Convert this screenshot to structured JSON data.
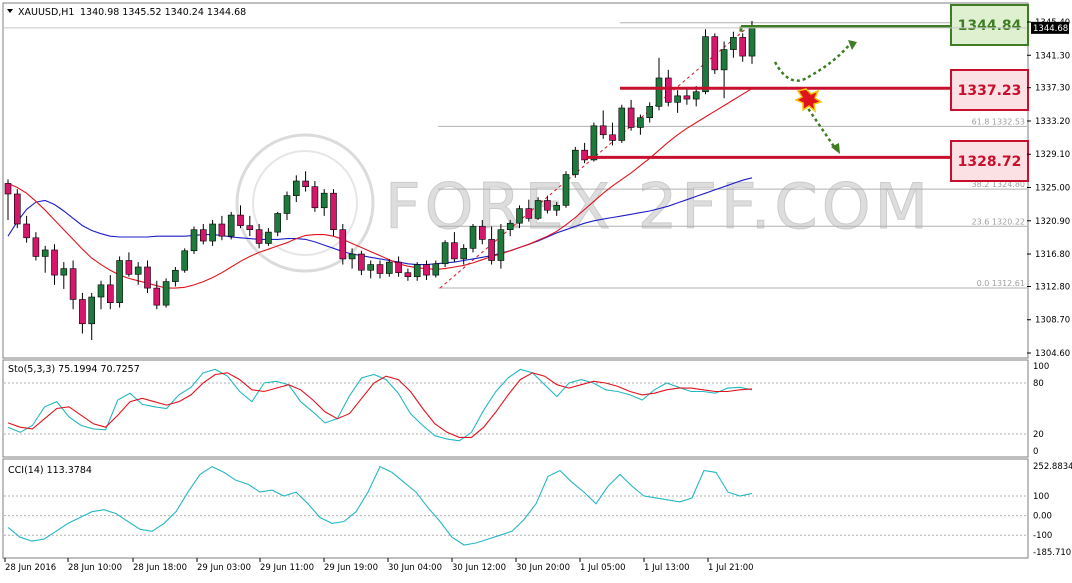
{
  "header": {
    "symbol": "XAUUSD,H1",
    "ohlc": "1340.98 1345.52 1340.24 1344.68"
  },
  "watermark": "FOREX 2FF.COM",
  "price_axis": {
    "ticks": [
      "1345.40",
      "1341.30",
      "1337.30",
      "1333.20",
      "1329.10",
      "1325.00",
      "1320.90",
      "1316.80",
      "1312.80",
      "1308.70",
      "1304.60"
    ],
    "current_price": "1344.68"
  },
  "time_axis": {
    "ticks": [
      "28 Jun 2016",
      "28 Jun 10:00",
      "28 Jun 18:00",
      "29 Jun 03:00",
      "29 Jun 11:00",
      "29 Jun 19:00",
      "30 Jun 04:00",
      "30 Jun 12:00",
      "30 Jun 20:00",
      "1 Jul 05:00",
      "1 Jul 13:00",
      "1 Jul 21:00"
    ]
  },
  "fib_levels": [
    {
      "label": "61.8  1332.53",
      "value": 1332.53
    },
    {
      "label": "38.2  1324.80",
      "value": 1324.8
    },
    {
      "label": "23.6  1320.22",
      "value": 1320.22
    },
    {
      "label": "0.0  1312.61",
      "value": 1312.61
    }
  ],
  "level_boxes": [
    {
      "label": "1344.84",
      "value": 1344.84,
      "kind": "resistance",
      "fill": "#dff0d0",
      "border": "#3e7d22",
      "line_color": "#3e7d22",
      "text_color": "#3e7d22"
    },
    {
      "label": "1337.23",
      "value": 1337.23,
      "kind": "pivot",
      "fill": "#fbe1e3",
      "border": "#c8102e",
      "line_color": "#c8102e",
      "text_color": "#c8102e"
    },
    {
      "label": "1328.72",
      "value": 1328.72,
      "kind": "support",
      "fill": "#fbe1e3",
      "border": "#c8102e",
      "line_color": "#c8102e",
      "text_color": "#c8102e"
    }
  ],
  "stoch": {
    "label": "Sto(5,3,3) 75.1994 70.7257",
    "ticks": [
      "100",
      "80",
      "20",
      "0"
    ],
    "main_color": "#26b7c4",
    "signal_color": "#e0141e",
    "main": [
      28,
      22,
      30,
      52,
      58,
      40,
      30,
      26,
      25,
      60,
      68,
      55,
      52,
      50,
      66,
      75,
      92,
      96,
      88,
      70,
      58,
      80,
      82,
      78,
      58,
      46,
      33,
      38,
      65,
      86,
      90,
      84,
      68,
      44,
      30,
      18,
      14,
      12,
      22,
      48,
      70,
      86,
      96,
      92,
      78,
      64,
      80,
      84,
      80,
      72,
      70,
      66,
      60,
      72,
      80,
      75,
      70,
      70,
      68,
      74,
      75,
      72
    ],
    "signal": [
      33,
      28,
      26,
      38,
      50,
      52,
      42,
      32,
      28,
      42,
      58,
      62,
      58,
      54,
      58,
      66,
      80,
      90,
      92,
      84,
      72,
      70,
      74,
      78,
      72,
      60,
      46,
      38,
      44,
      62,
      80,
      88,
      84,
      70,
      50,
      32,
      22,
      16,
      16,
      28,
      46,
      66,
      84,
      92,
      88,
      78,
      74,
      78,
      82,
      80,
      76,
      70,
      66,
      68,
      72,
      74,
      74,
      72,
      70,
      70,
      72,
      73
    ]
  },
  "cci": {
    "label": "CCI(14) 113.3784",
    "ticks": [
      "252.8834",
      "100",
      "0.00",
      "-100",
      "-185.710"
    ],
    "line_color": "#26b7c4",
    "values": [
      -60,
      -110,
      -130,
      -120,
      -80,
      -40,
      -10,
      20,
      30,
      10,
      -30,
      -70,
      -80,
      -40,
      20,
      120,
      210,
      250,
      220,
      180,
      160,
      120,
      130,
      100,
      120,
      60,
      -10,
      -40,
      -30,
      20,
      120,
      250,
      220,
      170,
      120,
      40,
      -30,
      -110,
      -150,
      -140,
      -120,
      -100,
      -80,
      -20,
      60,
      200,
      230,
      170,
      120,
      60,
      150,
      210,
      150,
      100,
      90,
      80,
      70,
      90,
      230,
      220,
      120,
      100,
      113
    ]
  },
  "chart_data": {
    "type": "candlestick",
    "symbol": "XAUUSD",
    "timeframe": "H1",
    "ylim": [
      1304.6,
      1345.4
    ],
    "candles": [
      [
        1325.5,
        1326.0,
        1321.0,
        1324.2
      ],
      [
        1324.2,
        1324.8,
        1320.0,
        1320.5
      ],
      [
        1320.5,
        1321.5,
        1318.2,
        1318.8
      ],
      [
        1318.8,
        1319.5,
        1316.0,
        1316.5
      ],
      [
        1316.5,
        1317.8,
        1314.5,
        1317.3
      ],
      [
        1317.3,
        1318.0,
        1313.0,
        1314.2
      ],
      [
        1314.2,
        1315.8,
        1312.5,
        1315.0
      ],
      [
        1315.0,
        1316.0,
        1310.0,
        1311.2
      ],
      [
        1311.2,
        1312.0,
        1307.0,
        1308.2
      ],
      [
        1308.2,
        1312.0,
        1306.2,
        1311.5
      ],
      [
        1311.5,
        1313.5,
        1310.0,
        1313.0
      ],
      [
        1313.0,
        1314.2,
        1310.0,
        1310.8
      ],
      [
        1310.8,
        1316.5,
        1310.2,
        1316.0
      ],
      [
        1316.0,
        1317.0,
        1314.0,
        1314.3
      ],
      [
        1314.3,
        1315.8,
        1313.0,
        1315.2
      ],
      [
        1315.2,
        1316.0,
        1312.0,
        1312.6
      ],
      [
        1312.6,
        1313.5,
        1310.0,
        1310.5
      ],
      [
        1310.5,
        1313.8,
        1310.2,
        1313.4
      ],
      [
        1313.4,
        1315.2,
        1312.8,
        1314.8
      ],
      [
        1314.8,
        1317.5,
        1314.5,
        1317.2
      ],
      [
        1317.2,
        1320.2,
        1316.8,
        1319.8
      ],
      [
        1319.8,
        1320.5,
        1318.0,
        1318.4
      ],
      [
        1318.4,
        1321.0,
        1317.8,
        1320.5
      ],
      [
        1320.5,
        1321.5,
        1318.5,
        1319.0
      ],
      [
        1319.0,
        1322.0,
        1318.6,
        1321.6
      ],
      [
        1321.6,
        1322.8,
        1320.0,
        1320.3
      ],
      [
        1320.3,
        1321.5,
        1319.0,
        1319.8
      ],
      [
        1319.8,
        1320.5,
        1317.5,
        1318.1
      ],
      [
        1318.1,
        1320.0,
        1317.8,
        1319.5
      ],
      [
        1319.5,
        1322.0,
        1319.0,
        1321.8
      ],
      [
        1321.8,
        1324.5,
        1321.0,
        1324.0
      ],
      [
        1324.0,
        1326.5,
        1323.2,
        1325.8
      ],
      [
        1325.8,
        1327.0,
        1324.5,
        1325.1
      ],
      [
        1325.1,
        1325.8,
        1322.0,
        1322.5
      ],
      [
        1322.5,
        1324.8,
        1321.5,
        1324.3
      ],
      [
        1324.3,
        1324.8,
        1319.0,
        1319.8
      ],
      [
        1319.8,
        1320.5,
        1315.5,
        1316.2
      ],
      [
        1316.2,
        1317.5,
        1315.0,
        1316.8
      ],
      [
        1316.8,
        1317.2,
        1314.2,
        1314.8
      ],
      [
        1314.8,
        1316.0,
        1313.8,
        1315.5
      ],
      [
        1315.5,
        1316.0,
        1313.8,
        1314.4
      ],
      [
        1314.4,
        1316.2,
        1314.0,
        1315.8
      ],
      [
        1315.8,
        1316.5,
        1314.0,
        1314.5
      ],
      [
        1314.5,
        1315.0,
        1313.5,
        1314.0
      ],
      [
        1314.0,
        1315.8,
        1313.5,
        1315.5
      ],
      [
        1315.5,
        1316.0,
        1313.6,
        1314.2
      ],
      [
        1314.2,
        1316.0,
        1313.9,
        1315.6
      ],
      [
        1315.6,
        1318.5,
        1315.2,
        1318.2
      ],
      [
        1318.2,
        1319.5,
        1315.8,
        1316.2
      ],
      [
        1316.2,
        1318.0,
        1315.5,
        1317.5
      ],
      [
        1317.5,
        1320.5,
        1317.0,
        1320.2
      ],
      [
        1320.2,
        1321.0,
        1318.0,
        1318.6
      ],
      [
        1318.6,
        1320.2,
        1315.5,
        1316.0
      ],
      [
        1316.0,
        1320.5,
        1315.0,
        1319.8
      ],
      [
        1319.8,
        1321.0,
        1319.0,
        1320.6
      ],
      [
        1320.6,
        1322.8,
        1320.0,
        1322.4
      ],
      [
        1322.4,
        1323.5,
        1320.8,
        1321.2
      ],
      [
        1321.2,
        1323.8,
        1321.0,
        1323.4
      ],
      [
        1323.4,
        1324.0,
        1321.8,
        1322.2
      ],
      [
        1322.2,
        1323.2,
        1321.5,
        1322.8
      ],
      [
        1322.8,
        1327.0,
        1322.5,
        1326.6
      ],
      [
        1326.6,
        1330.0,
        1326.2,
        1329.6
      ],
      [
        1329.6,
        1330.5,
        1328.0,
        1328.4
      ],
      [
        1328.4,
        1333.0,
        1328.2,
        1332.6
      ],
      [
        1332.6,
        1334.5,
        1331.0,
        1331.5
      ],
      [
        1331.5,
        1333.0,
        1330.2,
        1330.8
      ],
      [
        1330.8,
        1335.2,
        1330.5,
        1334.8
      ],
      [
        1334.8,
        1335.8,
        1332.0,
        1332.4
      ],
      [
        1332.4,
        1334.0,
        1331.5,
        1333.6
      ],
      [
        1333.6,
        1335.5,
        1333.0,
        1335.0
      ],
      [
        1335.0,
        1341.0,
        1334.5,
        1338.5
      ],
      [
        1338.5,
        1339.5,
        1335.0,
        1335.5
      ],
      [
        1335.5,
        1337.0,
        1334.2,
        1336.3
      ],
      [
        1336.3,
        1337.2,
        1335.2,
        1335.9
      ],
      [
        1335.9,
        1337.5,
        1335.0,
        1336.8
      ],
      [
        1336.8,
        1344.5,
        1336.5,
        1343.6
      ],
      [
        1343.6,
        1344.0,
        1339.0,
        1339.5
      ],
      [
        1339.5,
        1343.0,
        1336.0,
        1342.0
      ],
      [
        1342.0,
        1344.2,
        1341.0,
        1343.5
      ],
      [
        1343.5,
        1344.0,
        1340.5,
        1341.2
      ],
      [
        1341.2,
        1345.52,
        1340.24,
        1344.68
      ]
    ],
    "sma_blue": [
      1319,
      1320.8,
      1322.3,
      1323.2,
      1323.4,
      1322.9,
      1322.1,
      1321.2,
      1320.3,
      1319.7,
      1319.3,
      1319.0,
      1318.9,
      1318.9,
      1318.9,
      1318.9,
      1319.0,
      1319.0,
      1319.0,
      1319.0,
      1319.1,
      1319.2,
      1319.2,
      1319.1,
      1318.9,
      1318.8,
      1318.7,
      1318.6,
      1318.6,
      1318.6,
      1318.7,
      1318.7,
      1318.6,
      1318.3,
      1317.9,
      1317.5,
      1317.1,
      1316.8,
      1316.6,
      1316.4,
      1316.2,
      1316.0,
      1315.8,
      1315.6,
      1315.5,
      1315.5,
      1315.6,
      1315.7,
      1315.8,
      1316.0,
      1316.2,
      1316.4,
      1316.6,
      1316.9,
      1317.2,
      1317.6,
      1318.0,
      1318.4,
      1318.9,
      1319.4,
      1319.8,
      1320.2,
      1320.6,
      1320.9,
      1321.1,
      1321.3,
      1321.5,
      1321.7,
      1321.9,
      1322.1,
      1322.4,
      1322.7,
      1323.1,
      1323.5,
      1323.9,
      1324.3,
      1324.7,
      1325.1,
      1325.5,
      1325.9,
      1326.2
    ],
    "sma_red": [
      1325.5,
      1325.0,
      1324.3,
      1323.3,
      1322.2,
      1321.0,
      1319.8,
      1318.6,
      1317.4,
      1316.3,
      1315.5,
      1314.8,
      1314.2,
      1313.8,
      1313.5,
      1313.2,
      1312.9,
      1312.6,
      1312.6,
      1312.7,
      1313.0,
      1313.4,
      1313.9,
      1314.5,
      1315.2,
      1315.9,
      1316.5,
      1317.0,
      1317.4,
      1317.8,
      1318.2,
      1318.7,
      1319.1,
      1319.2,
      1319.2,
      1319.0,
      1318.6,
      1318.1,
      1317.6,
      1317.1,
      1316.6,
      1316.1,
      1315.6,
      1315.3,
      1315.1,
      1315.0,
      1314.9,
      1315.0,
      1315.2,
      1315.4,
      1315.7,
      1316.1,
      1316.5,
      1316.8,
      1317.2,
      1317.6,
      1318.0,
      1318.5,
      1319.0,
      1319.6,
      1320.4,
      1321.3,
      1322.3,
      1323.3,
      1324.3,
      1325.2,
      1326.0,
      1326.8,
      1327.7,
      1328.6,
      1329.6,
      1330.6,
      1331.5,
      1332.3,
      1333.0,
      1333.7,
      1334.4,
      1335.1,
      1335.8,
      1336.5,
      1337.2
    ]
  }
}
